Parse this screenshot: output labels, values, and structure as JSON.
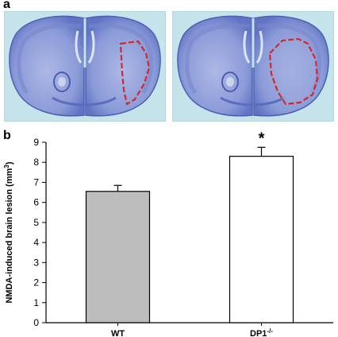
{
  "panels": {
    "a": {
      "letter": "a"
    },
    "b": {
      "letter": "b"
    }
  },
  "micrographs": [
    {
      "name": "WT",
      "lesion_outline_color": "#d62828",
      "stain_color": "#5a6fc0"
    },
    {
      "name": "DP1-/-",
      "lesion_outline_color": "#d62828",
      "stain_color": "#5a6fc0"
    }
  ],
  "chart_data": {
    "type": "bar",
    "ylabel_main": "NMDA-induced brain lesion (mm",
    "ylabel_sup": "3",
    "ylabel_tail": ")",
    "ylim": [
      0,
      9
    ],
    "yticks": [
      "0",
      "1",
      "2",
      "3",
      "4",
      "5",
      "6",
      "7",
      "8",
      "9"
    ],
    "categories": [
      {
        "label": "WT",
        "sup": ""
      },
      {
        "label": "DP1",
        "sup": "-/-"
      }
    ],
    "values": [
      6.55,
      8.3
    ],
    "errors": [
      0.3,
      0.45
    ],
    "bar_colors": [
      "#bdbdbd",
      "#ffffff"
    ],
    "significance": [
      "",
      "*"
    ],
    "grid": false,
    "legend": "none"
  }
}
